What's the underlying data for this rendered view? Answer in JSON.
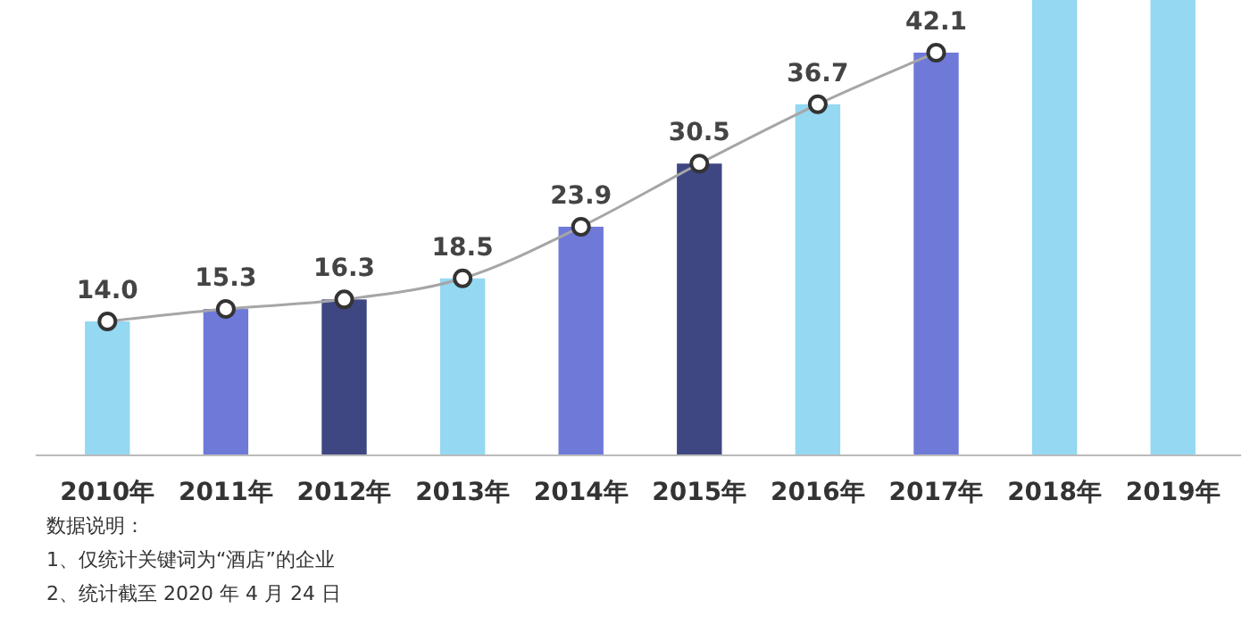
{
  "chart_data": {
    "type": "bar",
    "categories": [
      "2010年",
      "2011年",
      "2012年",
      "2013年",
      "2014年",
      "2015年",
      "2016年",
      "2017年",
      "2018年",
      "2019年"
    ],
    "ylim": [
      0,
      47.6
    ],
    "series": [
      {
        "values": [
          14.0,
          15.3,
          16.3,
          18.5,
          23.9,
          30.5,
          36.7,
          42.1,
          47.6,
          47.6
        ],
        "colors": [
          "#94d8f2",
          "#6e79d8",
          "#3e4782",
          "#94d8f2",
          "#6e79d8",
          "#3e4782",
          "#94d8f2",
          "#6e79d8",
          "#94d8f2",
          "#94d8f2"
        ],
        "value_labels": [
          "14.0",
          "15.3",
          "16.3",
          "18.5",
          "23.9",
          "30.5",
          "36.7",
          "42.1",
          null,
          null
        ]
      },
      {
        "type": "line",
        "color": "#a6a6a6",
        "marker": "circle",
        "values": [
          14.0,
          15.3,
          16.3,
          18.5,
          23.9,
          30.5,
          36.7,
          42.1,
          null,
          null
        ]
      }
    ],
    "annotations": [
      "数据说明：",
      "1、仅统计关键词为“酒店”的企业",
      "2、统计截至 2020 年 4 月 24 日"
    ]
  }
}
